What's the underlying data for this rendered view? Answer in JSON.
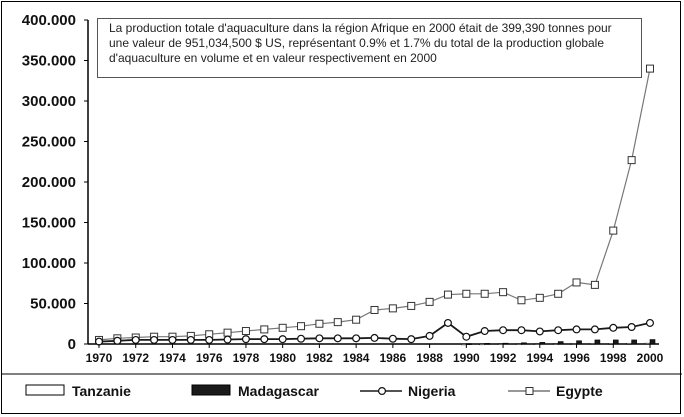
{
  "chart_data": {
    "type": "line",
    "title": "",
    "xlabel": "",
    "ylabel": "",
    "annotation": "La production totale d'aquaculture dans la région Afrique en 2000 était de 399,390 tonnes pour une valeur de 951,034,500 $ US, représentant 0.9% et 1.7% du total de la production globale d'aquaculture en volume et en valeur respectivement en 2000",
    "x": [
      1970,
      1971,
      1972,
      1973,
      1974,
      1975,
      1976,
      1977,
      1978,
      1979,
      1980,
      1981,
      1982,
      1983,
      1984,
      1985,
      1986,
      1987,
      1988,
      1989,
      1990,
      1991,
      1992,
      1993,
      1994,
      1995,
      1996,
      1997,
      1998,
      1999,
      2000
    ],
    "x_tick_labels": [
      "1970",
      "1972",
      "1974",
      "1976",
      "1978",
      "1980",
      "1982",
      "1984",
      "1986",
      "1988",
      "1990",
      "1992",
      "1994",
      "1996",
      "1998",
      "2000"
    ],
    "y_tick_labels": [
      "0",
      "50.000",
      "100.000",
      "150.000",
      "200.000",
      "250.000",
      "300.000",
      "350.000",
      "400.000"
    ],
    "ylim": [
      0,
      400000
    ],
    "grid": false,
    "legend_position": "bottom",
    "series": [
      {
        "name": "Tanzanie",
        "kind": "bar",
        "color": "#ffffff",
        "values": [
          0,
          0,
          0,
          0,
          0,
          0,
          0,
          0,
          0,
          0,
          0,
          0,
          0,
          0,
          0,
          0,
          0,
          0,
          0,
          0,
          200,
          300,
          400,
          500,
          500,
          500,
          600,
          700,
          800,
          900,
          1000
        ]
      },
      {
        "name": "Madagascar",
        "kind": "bar",
        "color": "#1a1a1a",
        "values": [
          0,
          0,
          0,
          0,
          0,
          0,
          0,
          0,
          0,
          0,
          0,
          0,
          0,
          0,
          0,
          0,
          0,
          0,
          0,
          0,
          500,
          800,
          1000,
          1500,
          2000,
          3000,
          4000,
          5000,
          5000,
          5000,
          5500
        ]
      },
      {
        "name": "Nigeria",
        "kind": "line",
        "marker": "circle",
        "color": "#1a1a1a",
        "values": [
          3000,
          4000,
          5000,
          5000,
          5000,
          5000,
          5000,
          5500,
          6000,
          6000,
          6000,
          6500,
          7000,
          7000,
          7000,
          7500,
          6500,
          6000,
          10000,
          26000,
          9000,
          16000,
          17000,
          17000,
          15500,
          17000,
          18000,
          18000,
          20000,
          21000,
          26000
        ]
      },
      {
        "name": "Egypte",
        "kind": "line",
        "marker": "square",
        "color": "#777777",
        "values": [
          5000,
          7000,
          8000,
          9000,
          9000,
          10000,
          12000,
          14000,
          16000,
          18000,
          20000,
          22000,
          25000,
          27000,
          30000,
          42000,
          44000,
          47000,
          52000,
          61000,
          62000,
          62000,
          64000,
          54000,
          57000,
          62000,
          76000,
          73000,
          140000,
          227000,
          340000
        ]
      }
    ]
  }
}
